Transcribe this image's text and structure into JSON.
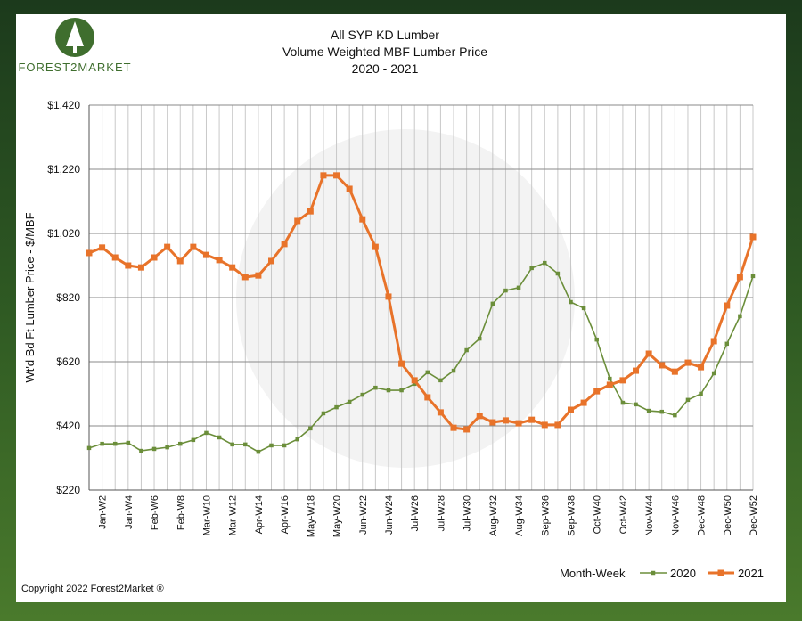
{
  "brand": "FOREST2MARKET",
  "copyright": "Copyright 2022 Forest2Market ®",
  "chart_data": {
    "type": "line",
    "title": "All SYP KD Lumber",
    "subtitle": "Volume Weighted MBF Lumber Price",
    "period": "2020 - 2021",
    "x_label": "Month-Week",
    "y_label": "Wt'd Bd Ft Lumber Price - $/MBF",
    "categories": [
      null,
      "Jan-W2",
      null,
      "Jan-W4",
      null,
      "Feb-W6",
      null,
      "Feb-W8",
      null,
      "Mar-W10",
      null,
      "Mar-W12",
      null,
      "Apr-W14",
      null,
      "Apr-W16",
      null,
      "May-W18",
      null,
      "May-W20",
      null,
      "Jun-W22",
      null,
      "Jun-W24",
      null,
      "Jul-W26",
      null,
      "Jul-W28",
      null,
      "Jul-W30",
      null,
      "Aug-W32",
      null,
      "Aug-W34",
      null,
      "Sep-W36",
      null,
      "Sep-W38",
      null,
      "Oct-W40",
      null,
      "Oct-W42",
      null,
      "Nov-W44",
      null,
      "Nov-W46",
      null,
      "Dec-W48",
      null,
      "Dec-W50",
      null,
      "Dec-W52"
    ],
    "series": [
      {
        "name": "2020",
        "color": "#6b8e3a",
        "marker": "square-small",
        "values": [
          351,
          364,
          364,
          367,
          342,
          348,
          353,
          364,
          376,
          398,
          384,
          362,
          362,
          339,
          359,
          359,
          378,
          412,
          459,
          478,
          495,
          517,
          539,
          531,
          531,
          551,
          587,
          562,
          592,
          656,
          692,
          801,
          842,
          851,
          912,
          928,
          895,
          806,
          787,
          689,
          567,
          492,
          487,
          467,
          464,
          453,
          501,
          520,
          584,
          676,
          762,
          887
        ]
      },
      {
        "name": "2021",
        "color": "#e8732a",
        "marker": "square-large",
        "values": [
          959,
          976,
          945,
          920,
          914,
          945,
          978,
          934,
          978,
          953,
          937,
          914,
          884,
          889,
          934,
          987,
          1059,
          1089,
          1201,
          1201,
          1159,
          1064,
          978,
          823,
          614,
          562,
          509,
          462,
          414,
          409,
          451,
          431,
          437,
          428,
          439,
          423,
          423,
          470,
          492,
          528,
          548,
          562,
          592,
          645,
          609,
          589,
          617,
          603,
          684,
          795,
          884,
          1009
        ]
      }
    ],
    "ylim": [
      220,
      1420
    ],
    "yticks": [
      {
        "value": 220,
        "label": "$220"
      },
      {
        "value": 420,
        "label": "$420"
      },
      {
        "value": 620,
        "label": "$620"
      },
      {
        "value": 820,
        "label": "$820"
      },
      {
        "value": 1020,
        "label": "$1,020"
      },
      {
        "value": 1220,
        "label": "$1,220"
      },
      {
        "value": 1420,
        "label": "$1,420"
      }
    ],
    "grid": true,
    "legend": "bottom-right"
  }
}
